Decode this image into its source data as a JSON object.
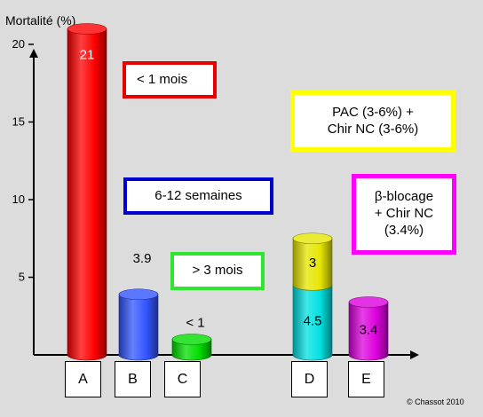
{
  "chart_data": {
    "type": "bar",
    "ylabel": "Mortalité (%)",
    "ylim": [
      0,
      22
    ],
    "yticks": [
      5,
      10,
      15,
      20
    ],
    "categories": [
      "A",
      "B",
      "C",
      "D",
      "E"
    ],
    "bars": [
      {
        "category": "A",
        "segments": [
          {
            "value": 21,
            "label": "21",
            "color": "#ff0000"
          }
        ]
      },
      {
        "category": "B",
        "segments": [
          {
            "value": 3.9,
            "label": "3.9",
            "color": "#3355ff"
          }
        ]
      },
      {
        "category": "C",
        "segments": [
          {
            "value": 1,
            "label": "< 1",
            "color": "#00dd00"
          }
        ]
      },
      {
        "category": "D",
        "segments": [
          {
            "value": 4.5,
            "label": "4.5",
            "color": "#00e0e0"
          },
          {
            "value": 3,
            "label": "3",
            "color": "#e6e600"
          }
        ]
      },
      {
        "category": "E",
        "segments": [
          {
            "value": 3.4,
            "label": "3.4",
            "color": "#dd00dd"
          }
        ]
      }
    ],
    "annotations": [
      {
        "text": "< 1 mois",
        "color": "#e60000"
      },
      {
        "text": "6-12 semaines",
        "color": "#0000cc"
      },
      {
        "text": "> 3 mois",
        "color": "#2ee62e"
      },
      {
        "text": "PAC (3-6%) +\nChir NC (3-6%)",
        "color": "#ffff00"
      },
      {
        "text": "β-blocage\n+ Chir NC\n(3.4%)",
        "color": "#ff00ff"
      }
    ],
    "grid": false
  },
  "copyright": "© Chassot 2010"
}
